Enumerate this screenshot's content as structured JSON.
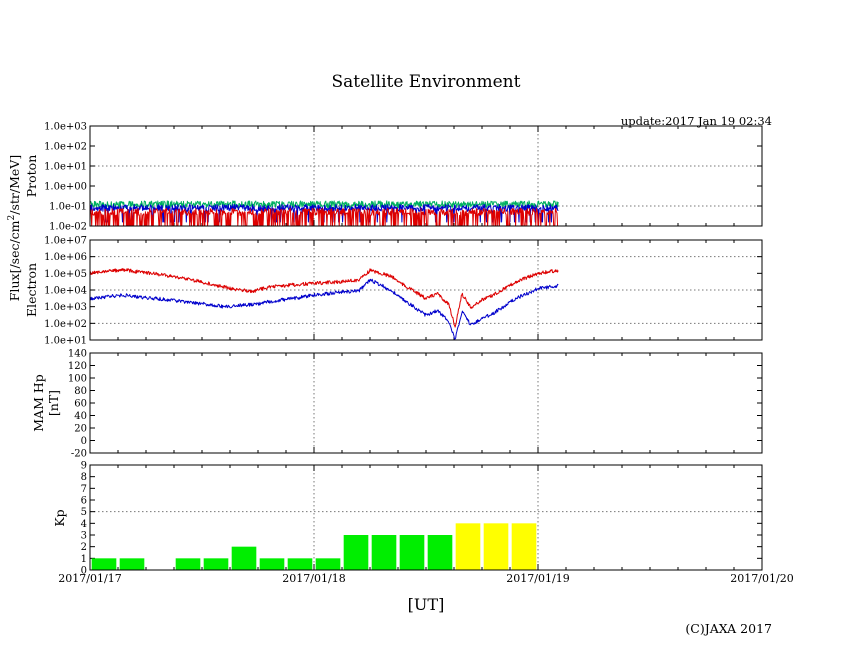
{
  "title": "Satellite Environment",
  "update": "update:2017 Jan 19 02:34",
  "copyright": "(C)JAXA 2017",
  "x_axis": {
    "label": "[UT]",
    "ticks": [
      "2017/01/17",
      "2017/01/18",
      "2017/01/19",
      "2017/01/20"
    ],
    "range_days": [
      0,
      3
    ]
  },
  "flux_label": {
    "prefix": "Flux[/sec/cm",
    "sup": "2",
    "suffix": "/str/MeV]"
  },
  "colors": {
    "red": "#dd0000",
    "blue": "#0000cc",
    "green": "#00b060",
    "kp_low": "#00ee00",
    "kp_high": "#ffff00",
    "grid": "#777777"
  },
  "chart_data": [
    {
      "type": "line",
      "title": "Proton",
      "ylabel": "Proton",
      "yscale": "log",
      "ylim": [
        0.01,
        1000
      ],
      "yticks": [
        "1.0e-02",
        "1.0e-01",
        "1.0e+00",
        "1.0e+01",
        "1.0e+02",
        "1.0e+03"
      ],
      "series": [
        {
          "name": "proton-channel-green",
          "color": "#00b060",
          "x": [
            0,
            0.25,
            0.5,
            0.75,
            1.0,
            1.25,
            1.5,
            1.75,
            2.09
          ],
          "values": [
            0.12,
            0.12,
            0.12,
            0.12,
            0.12,
            0.12,
            0.12,
            0.12,
            0.12
          ]
        },
        {
          "name": "proton-channel-blue",
          "color": "#0000cc",
          "x": [
            0,
            0.25,
            0.5,
            0.75,
            1.0,
            1.25,
            1.5,
            1.75,
            2.09
          ],
          "values": [
            0.08,
            0.08,
            0.08,
            0.08,
            0.08,
            0.08,
            0.08,
            0.08,
            0.08
          ]
        },
        {
          "name": "proton-channel-red",
          "color": "#dd0000",
          "x": [
            0,
            0.25,
            0.5,
            0.75,
            1.0,
            1.25,
            1.5,
            1.75,
            2.09
          ],
          "values": [
            0.05,
            0.05,
            0.05,
            0.05,
            0.05,
            0.05,
            0.05,
            0.05,
            0.05
          ]
        }
      ]
    },
    {
      "type": "line",
      "title": "Electron",
      "ylabel": "Electron",
      "yscale": "log",
      "ylim": [
        10,
        10000000
      ],
      "yticks": [
        "1.0e+01",
        "1.0e+02",
        "1.0e+03",
        "1.0e+04",
        "1.0e+05",
        "1.0e+06",
        "1.0e+07"
      ],
      "series": [
        {
          "name": "electron-channel-red",
          "color": "#dd0000",
          "x": [
            0,
            0.08,
            0.15,
            0.2,
            0.3,
            0.4,
            0.5,
            0.6,
            0.67,
            0.72,
            0.8,
            0.9,
            1.0,
            1.1,
            1.2,
            1.25,
            1.3,
            1.35,
            1.4,
            1.45,
            1.5,
            1.55,
            1.6,
            1.63,
            1.66,
            1.7,
            1.75,
            1.8,
            1.9,
            2.0,
            2.09
          ],
          "values": [
            100000,
            140000,
            160000,
            130000,
            90000,
            55000,
            30000,
            15000,
            10000,
            8000,
            15000,
            20000,
            25000,
            30000,
            40000,
            150000,
            100000,
            60000,
            20000,
            8000,
            3000,
            6000,
            1500,
            60,
            6000,
            900,
            2500,
            5000,
            30000,
            100000,
            150000
          ]
        },
        {
          "name": "electron-channel-blue",
          "color": "#0000cc",
          "x": [
            0,
            0.08,
            0.15,
            0.2,
            0.3,
            0.4,
            0.5,
            0.6,
            0.67,
            0.72,
            0.8,
            0.9,
            1.0,
            1.1,
            1.2,
            1.25,
            1.3,
            1.35,
            1.4,
            1.45,
            1.5,
            1.55,
            1.6,
            1.63,
            1.66,
            1.7,
            1.75,
            1.8,
            1.9,
            2.0,
            2.09
          ],
          "values": [
            3000,
            4000,
            5000,
            4000,
            3000,
            2200,
            1500,
            1000,
            1200,
            1300,
            2000,
            3000,
            5000,
            7000,
            9000,
            40000,
            20000,
            8000,
            2500,
            900,
            300,
            600,
            150,
            10,
            500,
            80,
            200,
            400,
            3000,
            12000,
            18000
          ]
        }
      ]
    },
    {
      "type": "line",
      "title": "MAM Hp",
      "ylabel": "MAM Hp",
      "ylabel2": "[nT]",
      "ylim": [
        -20,
        140
      ],
      "yticks": [
        "-20",
        "0",
        "20",
        "40",
        "60",
        "80",
        "100",
        "120",
        "140"
      ],
      "series": []
    },
    {
      "type": "bar",
      "title": "Kp",
      "ylabel": "Kp",
      "ylim": [
        0,
        9
      ],
      "yticks": [
        "0",
        "1",
        "2",
        "3",
        "4",
        "5",
        "6",
        "7",
        "8",
        "9"
      ],
      "bar_width_days": 0.125,
      "series": [
        {
          "name": "Kp",
          "x": [
            0,
            0.125,
            0.25,
            0.375,
            0.5,
            0.625,
            0.75,
            0.875,
            1.0,
            1.125,
            1.25,
            1.375,
            1.5,
            1.625,
            1.75,
            1.875,
            2.0,
            2.125,
            2.25,
            2.375,
            2.5,
            2.625,
            2.75,
            2.875
          ],
          "values": [
            1,
            1,
            0,
            1,
            1,
            2,
            1,
            1,
            1,
            3,
            3,
            3,
            3,
            4,
            4,
            4,
            null,
            null,
            null,
            null,
            null,
            null,
            null,
            null
          ]
        }
      ],
      "threshold": 5
    }
  ]
}
